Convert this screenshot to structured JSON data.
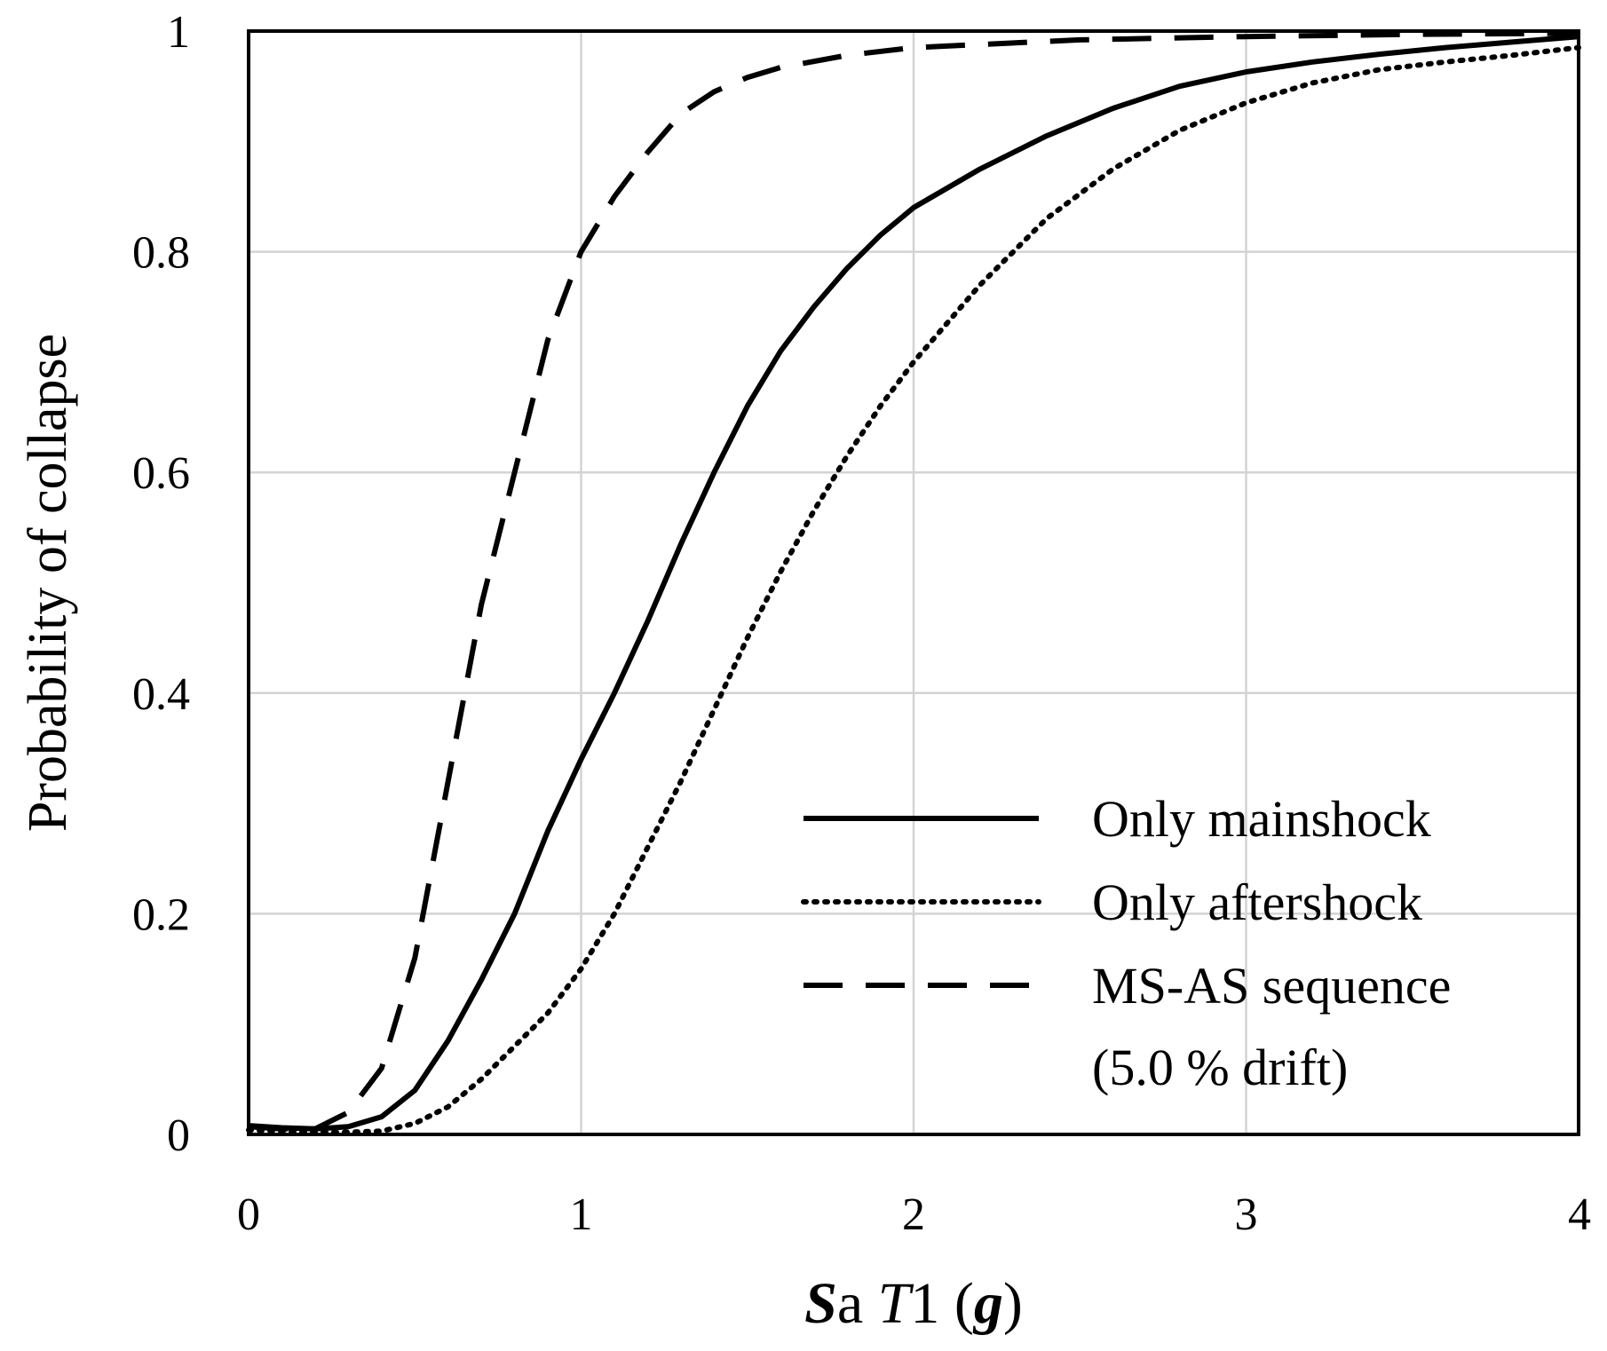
{
  "chart_data": {
    "type": "line",
    "xlabel_parts": [
      {
        "text": "S",
        "style": "bold-italic"
      },
      {
        "text": "a ",
        "style": "normal"
      },
      {
        "text": "T",
        "style": "italic"
      },
      {
        "text": "1 (",
        "style": "normal"
      },
      {
        "text": "g",
        "style": "bold-italic"
      },
      {
        "text": ")",
        "style": "normal"
      }
    ],
    "ylabel": "Probability of collapse",
    "xlim": [
      0,
      4
    ],
    "ylim": [
      0,
      1
    ],
    "xticks": [
      "0",
      "1",
      "2",
      "3",
      "4"
    ],
    "yticks": [
      "0",
      "0.2",
      "0.4",
      "0.6",
      "0.8",
      "1"
    ],
    "grid": true,
    "legend_position": "bottom-right",
    "series": [
      {
        "name": "Only mainshock",
        "dash": "solid",
        "color": "#000000",
        "points": [
          [
            0,
            0.008
          ],
          [
            0.1,
            0.006
          ],
          [
            0.2,
            0.005
          ],
          [
            0.3,
            0.007
          ],
          [
            0.4,
            0.016
          ],
          [
            0.5,
            0.04
          ],
          [
            0.6,
            0.085
          ],
          [
            0.7,
            0.14
          ],
          [
            0.8,
            0.2
          ],
          [
            0.9,
            0.275
          ],
          [
            1.0,
            0.34
          ],
          [
            1.1,
            0.4
          ],
          [
            1.2,
            0.465
          ],
          [
            1.3,
            0.535
          ],
          [
            1.4,
            0.6
          ],
          [
            1.5,
            0.66
          ],
          [
            1.6,
            0.71
          ],
          [
            1.7,
            0.75
          ],
          [
            1.8,
            0.785
          ],
          [
            1.9,
            0.815
          ],
          [
            2.0,
            0.84
          ],
          [
            2.2,
            0.875
          ],
          [
            2.4,
            0.905
          ],
          [
            2.6,
            0.93
          ],
          [
            2.8,
            0.95
          ],
          [
            3.0,
            0.963
          ],
          [
            3.2,
            0.972
          ],
          [
            3.4,
            0.979
          ],
          [
            3.6,
            0.985
          ],
          [
            3.8,
            0.99
          ],
          [
            4.0,
            0.995
          ]
        ]
      },
      {
        "name": "Only aftershock",
        "dash": "dotted",
        "color": "#000000",
        "points": [
          [
            0,
            0.004
          ],
          [
            0.2,
            0.002
          ],
          [
            0.3,
            0.002
          ],
          [
            0.4,
            0.003
          ],
          [
            0.5,
            0.01
          ],
          [
            0.6,
            0.025
          ],
          [
            0.7,
            0.05
          ],
          [
            0.8,
            0.08
          ],
          [
            0.9,
            0.11
          ],
          [
            1.0,
            0.15
          ],
          [
            1.1,
            0.2
          ],
          [
            1.2,
            0.26
          ],
          [
            1.3,
            0.32
          ],
          [
            1.4,
            0.385
          ],
          [
            1.5,
            0.45
          ],
          [
            1.6,
            0.51
          ],
          [
            1.7,
            0.565
          ],
          [
            1.8,
            0.615
          ],
          [
            1.9,
            0.66
          ],
          [
            2.0,
            0.7
          ],
          [
            2.2,
            0.77
          ],
          [
            2.4,
            0.83
          ],
          [
            2.6,
            0.875
          ],
          [
            2.8,
            0.91
          ],
          [
            3.0,
            0.935
          ],
          [
            3.2,
            0.953
          ],
          [
            3.4,
            0.965
          ],
          [
            3.6,
            0.972
          ],
          [
            3.8,
            0.978
          ],
          [
            4.0,
            0.985
          ]
        ]
      },
      {
        "name": "MS-AS sequence",
        "name_line2": "(5.0 % drift)",
        "dash": "dashed",
        "color": "#000000",
        "points": [
          [
            0,
            0.007
          ],
          [
            0.1,
            0.005
          ],
          [
            0.2,
            0.005
          ],
          [
            0.3,
            0.02
          ],
          [
            0.4,
            0.06
          ],
          [
            0.5,
            0.16
          ],
          [
            0.6,
            0.32
          ],
          [
            0.7,
            0.48
          ],
          [
            0.8,
            0.6
          ],
          [
            0.9,
            0.72
          ],
          [
            1.0,
            0.8
          ],
          [
            1.1,
            0.85
          ],
          [
            1.2,
            0.89
          ],
          [
            1.3,
            0.925
          ],
          [
            1.4,
            0.945
          ],
          [
            1.5,
            0.958
          ],
          [
            1.6,
            0.967
          ],
          [
            1.8,
            0.978
          ],
          [
            2.0,
            0.985
          ],
          [
            2.5,
            0.992
          ],
          [
            3.0,
            0.995
          ],
          [
            3.5,
            0.997
          ],
          [
            4.0,
            0.998
          ]
        ]
      }
    ]
  }
}
